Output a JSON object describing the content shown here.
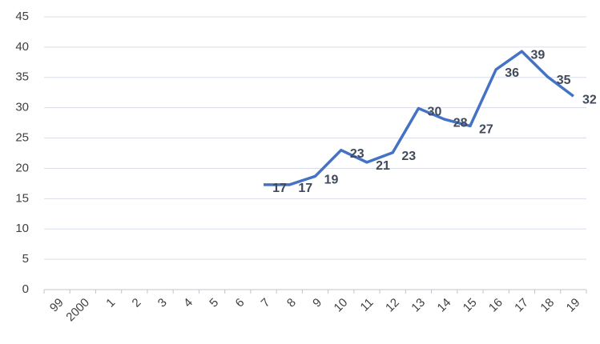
{
  "chart_data": {
    "type": "line",
    "categories": [
      "99",
      "2000",
      "1",
      "2",
      "3",
      "4",
      "5",
      "6",
      "7",
      "8",
      "9",
      "10",
      "11",
      "12",
      "13",
      "14",
      "15",
      "16",
      "17",
      "18",
      "19"
    ],
    "series": [
      {
        "color": "#4472c4",
        "values": [
          null,
          null,
          null,
          null,
          null,
          null,
          null,
          null,
          17.3,
          17.3,
          18.7,
          23.0,
          21.0,
          22.6,
          29.9,
          28.1,
          27.0,
          36.3,
          39.3,
          35.1,
          31.9
        ],
        "value_labels": [
          null,
          null,
          null,
          null,
          null,
          null,
          null,
          null,
          "17",
          "17",
          "19",
          "23",
          "21",
          "23",
          "30",
          "28",
          "27",
          "36",
          "39",
          "35",
          "32"
        ]
      }
    ],
    "ylim": [
      0,
      45
    ],
    "yticks": [
      0,
      5,
      10,
      15,
      20,
      25,
      30,
      35,
      40,
      45
    ],
    "grid": true
  }
}
